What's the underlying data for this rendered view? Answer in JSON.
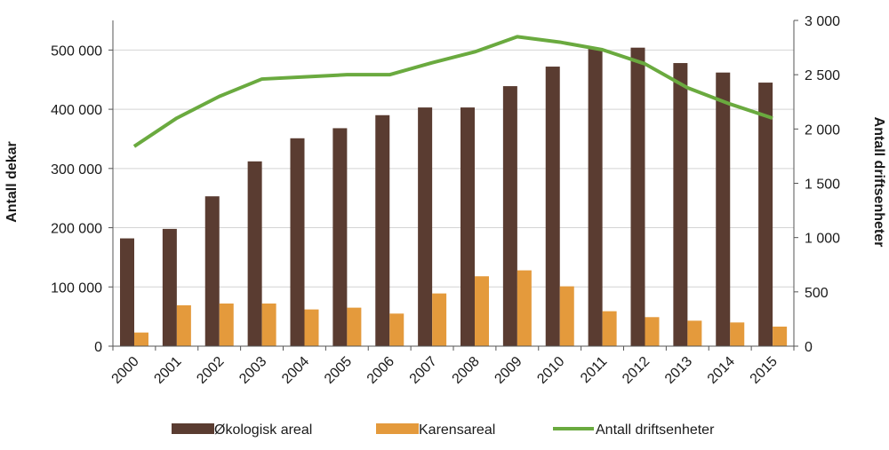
{
  "chart_data": {
    "type": "bar",
    "categories": [
      "2000",
      "2001",
      "2002",
      "2003",
      "2004",
      "2005",
      "2006",
      "2007",
      "2008",
      "2009",
      "2010",
      "2011",
      "2012",
      "2013",
      "2014",
      "2015"
    ],
    "series": [
      {
        "name": "Økologisk areal",
        "type": "bar",
        "axis": "left",
        "color": "#5a3c31",
        "values": [
          182000,
          198000,
          253000,
          312000,
          351000,
          368000,
          390000,
          403000,
          403000,
          439000,
          472000,
          503000,
          504000,
          478000,
          462000,
          445000
        ]
      },
      {
        "name": "Karensareal",
        "type": "bar",
        "axis": "left",
        "color": "#e49a3c",
        "values": [
          23000,
          69000,
          72000,
          72000,
          62000,
          65000,
          55000,
          89000,
          118000,
          128000,
          101000,
          59000,
          49000,
          43000,
          40000,
          33000
        ]
      },
      {
        "name": "Antall driftsenheter",
        "type": "line",
        "axis": "right",
        "color": "#6aaa3f",
        "values": [
          1840,
          2100,
          2300,
          2460,
          2480,
          2500,
          2500,
          2610,
          2710,
          2850,
          2800,
          2730,
          2600,
          2380,
          2230,
          2100
        ]
      }
    ],
    "ylabel": "Antall dekar",
    "y2label": "Antall driftsenheter",
    "ylim": [
      0,
      550000
    ],
    "y2lim": [
      0,
      3000
    ],
    "yticks": [
      0,
      100000,
      200000,
      300000,
      400000,
      500000
    ],
    "ytick_labels": [
      "0",
      "100 000",
      "200 000",
      "300 000",
      "400 000",
      "500 000"
    ],
    "y2ticks": [
      0,
      500,
      1000,
      1500,
      2000,
      2500,
      3000
    ],
    "y2tick_labels": [
      "0",
      "500",
      "1 000",
      "1 500",
      "2 000",
      "2 500",
      "3 000"
    ],
    "grid": true,
    "legend_position": "bottom"
  }
}
